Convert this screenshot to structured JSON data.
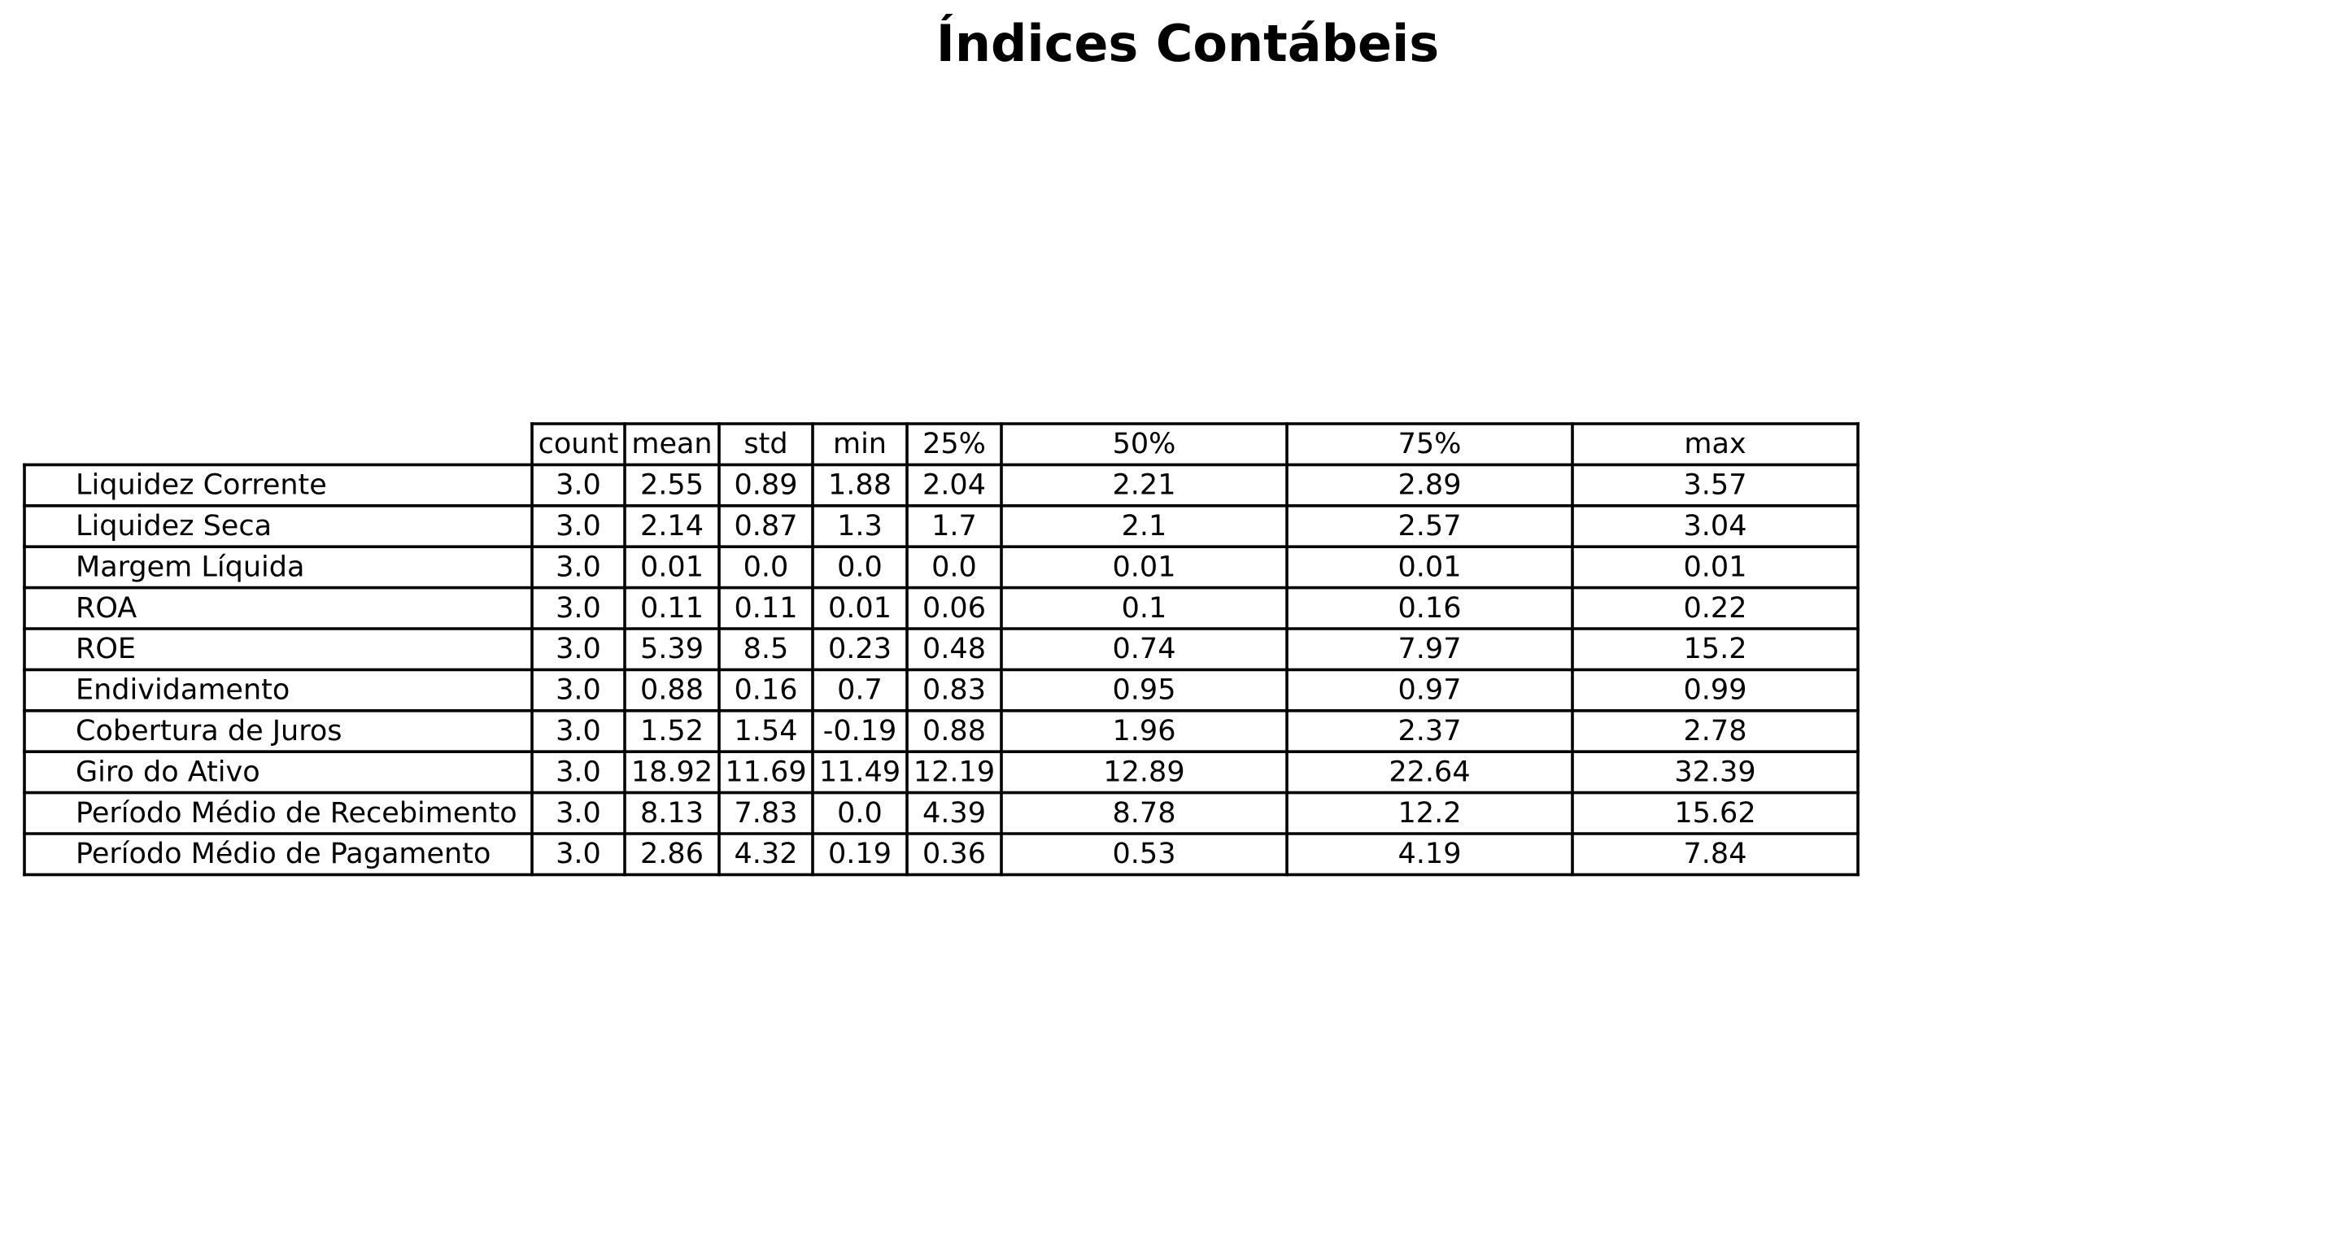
{
  "chart_data": {
    "type": "table",
    "title": "Índices Contábeis",
    "columns": [
      "count",
      "mean",
      "std",
      "min",
      "25%",
      "50%",
      "75%",
      "max"
    ],
    "rows": [
      {
        "label": "Liquidez Corrente",
        "values": [
          "3.0",
          "2.55",
          "0.89",
          "1.88",
          "2.04",
          "2.21",
          "2.89",
          "3.57"
        ]
      },
      {
        "label": "Liquidez Seca",
        "values": [
          "3.0",
          "2.14",
          "0.87",
          "1.3",
          "1.7",
          "2.1",
          "2.57",
          "3.04"
        ]
      },
      {
        "label": "Margem Líquida",
        "values": [
          "3.0",
          "0.01",
          "0.0",
          "0.0",
          "0.0",
          "0.01",
          "0.01",
          "0.01"
        ]
      },
      {
        "label": "ROA",
        "values": [
          "3.0",
          "0.11",
          "0.11",
          "0.01",
          "0.06",
          "0.1",
          "0.16",
          "0.22"
        ]
      },
      {
        "label": "ROE",
        "values": [
          "3.0",
          "5.39",
          "8.5",
          "0.23",
          "0.48",
          "0.74",
          "7.97",
          "15.2"
        ]
      },
      {
        "label": "Endividamento",
        "values": [
          "3.0",
          "0.88",
          "0.16",
          "0.7",
          "0.83",
          "0.95",
          "0.97",
          "0.99"
        ]
      },
      {
        "label": "Cobertura de Juros",
        "values": [
          "3.0",
          "1.52",
          "1.54",
          "-0.19",
          "0.88",
          "1.96",
          "2.37",
          "2.78"
        ]
      },
      {
        "label": "Giro do Ativo",
        "values": [
          "3.0",
          "18.92",
          "11.69",
          "11.49",
          "12.19",
          "12.89",
          "22.64",
          "32.39"
        ]
      },
      {
        "label": "Período Médio de Recebimento",
        "values": [
          "3.0",
          "8.13",
          "7.83",
          "0.0",
          "4.39",
          "8.78",
          "12.2",
          "15.62"
        ]
      },
      {
        "label": "Período Médio de Pagamento",
        "values": [
          "3.0",
          "2.86",
          "4.32",
          "0.19",
          "0.36",
          "0.53",
          "4.19",
          "7.84"
        ]
      }
    ]
  }
}
